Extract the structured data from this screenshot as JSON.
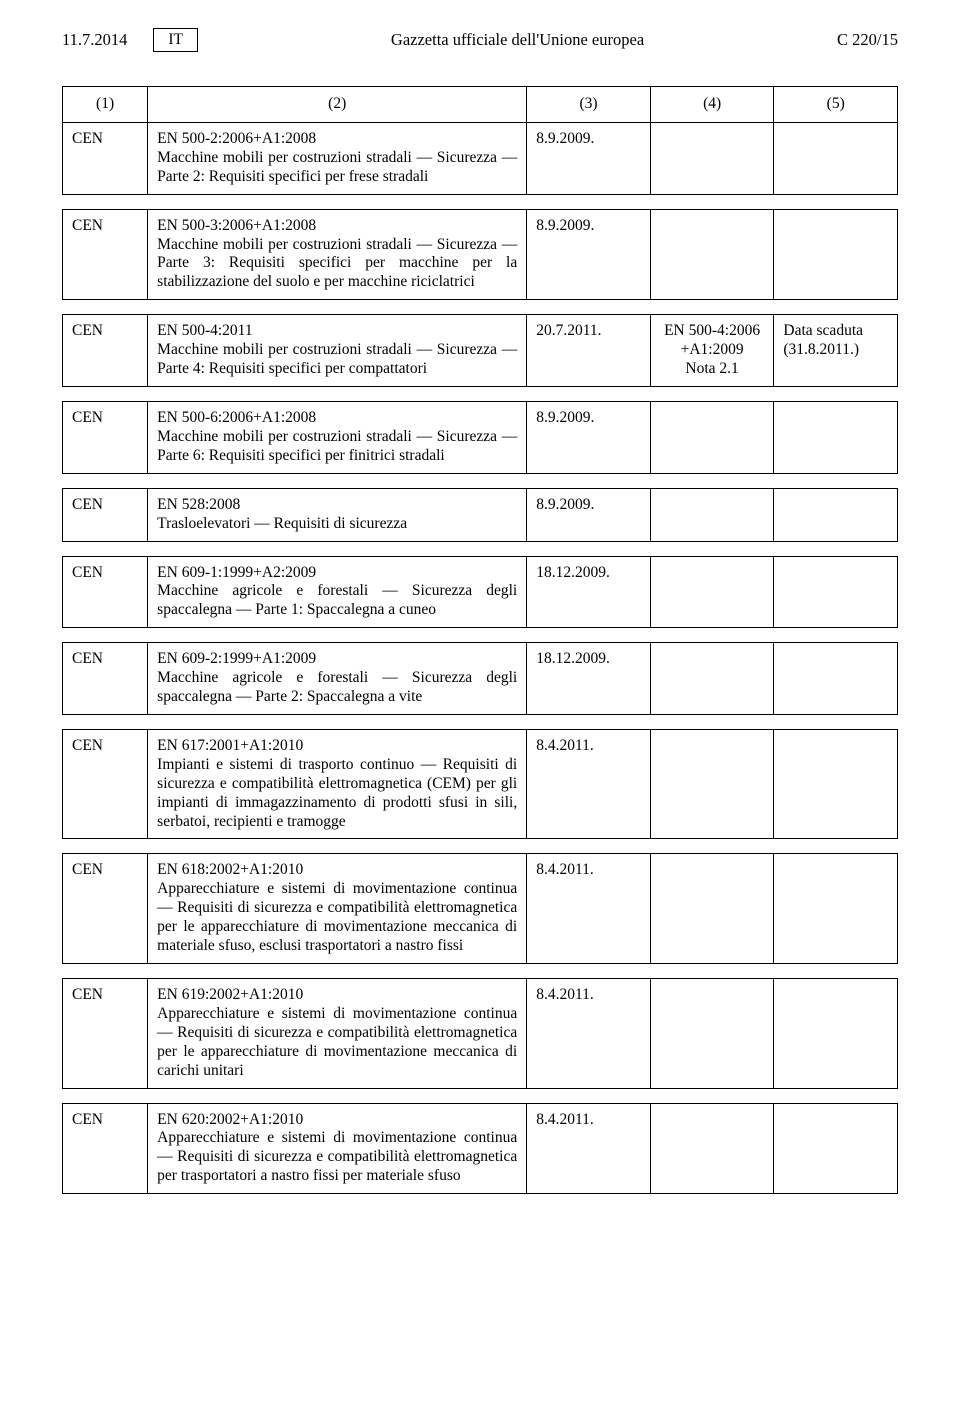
{
  "header": {
    "date": "11.7.2014",
    "lang": "IT",
    "center": "Gazzetta ufficiale dell'Unione europea",
    "right": "C 220/15"
  },
  "table": {
    "headers": {
      "c1": "(1)",
      "c2": "(2)",
      "c3": "(3)",
      "c4": "(4)",
      "c5": "(5)"
    },
    "rows": [
      {
        "c1": "CEN",
        "c2": "EN 500-2:2006+A1:2008\nMacchine mobili per costruzioni stradali — Sicurezza — Parte 2: Requisiti specifici per frese stradali",
        "c3": "8.9.2009.",
        "c4": "",
        "c5": ""
      },
      {
        "c1": "CEN",
        "c2": "EN 500-3:2006+A1:2008\nMacchine mobili per costruzioni stradali — Sicurezza — Parte 3: Requisiti specifici per macchine per la stabilizzazione del suolo e per macchine riciclatrici",
        "c3": "8.9.2009.",
        "c4": "",
        "c5": ""
      },
      {
        "c1": "CEN",
        "c2": "EN 500-4:2011\nMacchine mobili per costruzioni stradali — Sicurezza — Parte 4: Requisiti specifici per compattatori",
        "c3": "20.7.2011.",
        "c4": "EN 500-4:2006\n+A1:2009\nNota 2.1",
        "c5": "Data scaduta\n(31.8.2011.)"
      },
      {
        "c1": "CEN",
        "c2": "EN 500-6:2006+A1:2008\nMacchine mobili per costruzioni stradali — Sicurezza — Parte 6: Requisiti specifici per finitrici stradali",
        "c3": "8.9.2009.",
        "c4": "",
        "c5": ""
      },
      {
        "c1": "CEN",
        "c2": "EN 528:2008\nTrasloelevatori — Requisiti di sicurezza",
        "c3": "8.9.2009.",
        "c4": "",
        "c5": ""
      },
      {
        "c1": "CEN",
        "c2": "EN 609-1:1999+A2:2009\nMacchine agricole e forestali — Sicurezza degli spaccalegna — Parte 1: Spaccalegna a cuneo",
        "c3": "18.12.2009.",
        "c4": "",
        "c5": ""
      },
      {
        "c1": "CEN",
        "c2": "EN 609-2:1999+A1:2009\nMacchine agricole e forestali — Sicurezza degli spaccalegna — Parte 2: Spaccalegna a vite",
        "c3": "18.12.2009.",
        "c4": "",
        "c5": ""
      },
      {
        "c1": "CEN",
        "c2": "EN 617:2001+A1:2010\nImpianti e sistemi di trasporto continuo — Requisiti di sicurezza e compatibilità elettroma­gnetica (CEM) per gli impianti di immagazzina­mento di prodotti sfusi in sili, serbatoi, recipienti e tramogge",
        "c3": "8.4.2011.",
        "c4": "",
        "c5": ""
      },
      {
        "c1": "CEN",
        "c2": "EN 618:2002+A1:2010\nApparecchiature e sistemi di movimentazione continua — Requisiti di sicurezza e compatibilità elettromagnetica per le apparecchiature di movi­mentazione meccanica di materiale sfuso, esclusi trasportatori a nastro fissi",
        "c3": "8.4.2011.",
        "c4": "",
        "c5": ""
      },
      {
        "c1": "CEN",
        "c2": "EN 619:2002+A1:2010\nApparecchiature e sistemi di movimentazione continua — Requisiti di sicurezza e compatibilità elettromagnetica per le apparecchiature di movi­mentazione meccanica di carichi unitari",
        "c3": "8.4.2011.",
        "c4": "",
        "c5": ""
      },
      {
        "c1": "CEN",
        "c2": "EN 620:2002+A1:2010\nApparecchiature e sistemi di movimentazione continua — Requisiti di sicurezza e compatibilità elettromagnetica per trasportatori a nastro fissi per materiale sfuso",
        "c3": "8.4.2011.",
        "c4": "",
        "c5": ""
      }
    ]
  }
}
